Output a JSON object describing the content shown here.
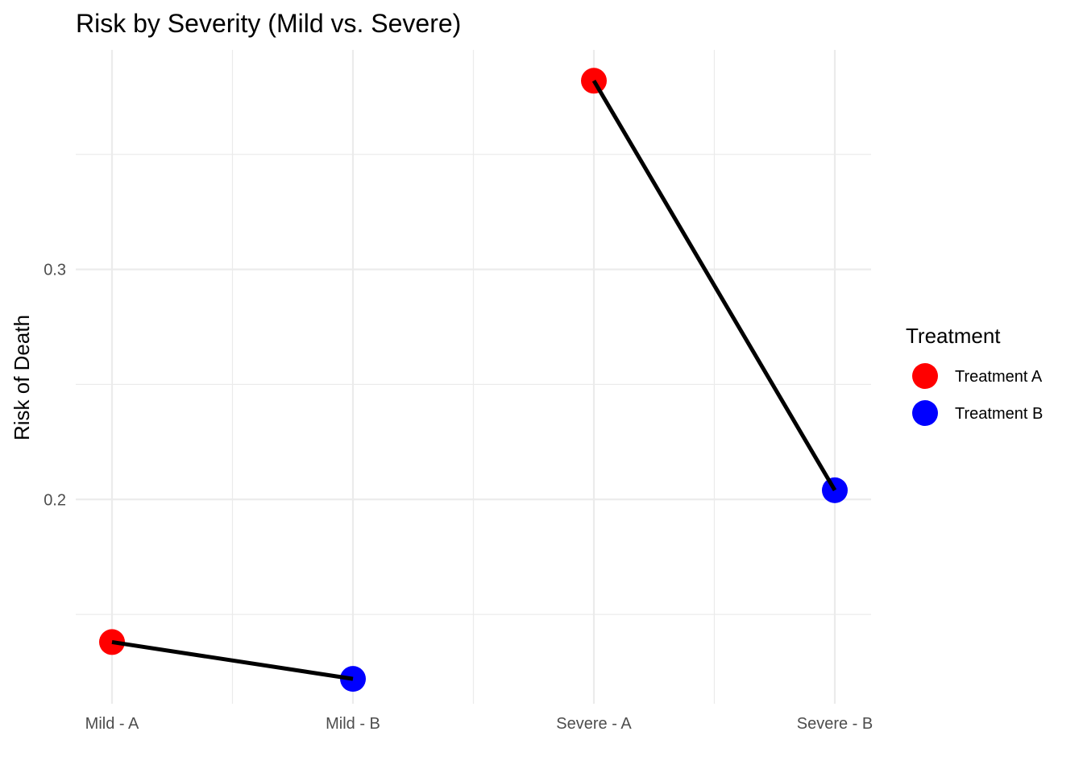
{
  "chart_data": {
    "type": "line",
    "title": "Risk by Severity (Mild vs. Severe)",
    "xlabel": "",
    "ylabel": "Risk of Death",
    "categories": [
      "Mild - A",
      "Mild - B",
      "Severe - A",
      "Severe - B"
    ],
    "y_ticks": [
      0.2,
      0.3
    ],
    "y_tick_labels": [
      "0.2",
      "0.3"
    ],
    "ylim": [
      0.1112,
      0.3954
    ],
    "grid": true,
    "legend": {
      "title": "Treatment",
      "placement": "right",
      "entries": [
        {
          "label": "Treatment A",
          "color": "#ff0000"
        },
        {
          "label": "Treatment B",
          "color": "#0000ff"
        }
      ]
    },
    "points": [
      {
        "category": "Mild - A",
        "value": 0.138,
        "treatment": "Treatment A",
        "color": "#ff0000"
      },
      {
        "category": "Mild - B",
        "value": 0.122,
        "treatment": "Treatment B",
        "color": "#0000ff"
      },
      {
        "category": "Severe - A",
        "value": 0.382,
        "treatment": "Treatment A",
        "color": "#ff0000"
      },
      {
        "category": "Severe - B",
        "value": 0.204,
        "treatment": "Treatment B",
        "color": "#0000ff"
      }
    ],
    "segments": [
      {
        "from": "Mild - A",
        "to": "Mild - B"
      },
      {
        "from": "Severe - A",
        "to": "Severe - B"
      }
    ],
    "line_color": "#000000",
    "grid_color": "#ebebeb"
  }
}
